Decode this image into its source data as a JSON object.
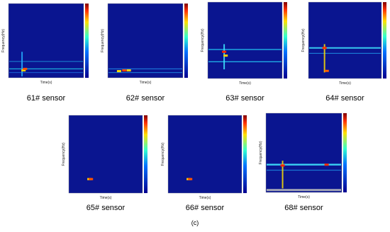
{
  "panels": [
    {
      "label": "61# sensor",
      "x_axis_label": "Time(s)",
      "y_axis_label": "Frequency(Hz)"
    },
    {
      "label": "62# sensor",
      "x_axis_label": "Time(s)",
      "y_axis_label": "Frequency(Hz)"
    },
    {
      "label": "63# sensor",
      "x_axis_label": "Time(s)",
      "y_axis_label": "Frequency(Hz)"
    },
    {
      "label": "64# sensor",
      "x_axis_label": "Time(s)",
      "y_axis_label": "Frequency(Hz)"
    },
    {
      "label": "65# sensor",
      "x_axis_label": "Time(s)",
      "y_axis_label": "Frequency(Hz)"
    },
    {
      "label": "66# sensor",
      "x_axis_label": "Time(s)",
      "y_axis_label": "Frequency(Hz)"
    },
    {
      "label": "68# sensor",
      "x_axis_label": "Time(s)",
      "y_axis_label": "Frequency(Hz)"
    }
  ],
  "caption": "(c)"
}
